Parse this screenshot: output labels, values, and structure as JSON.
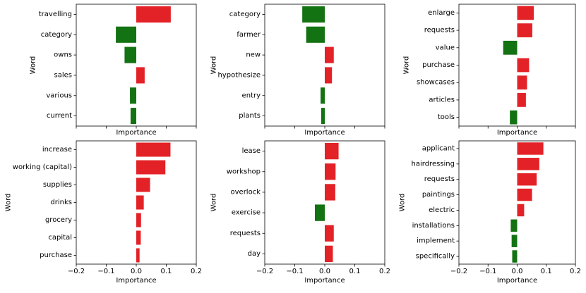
{
  "colors": {
    "positive": "#e32227",
    "negative": "#137212",
    "axis": "#000000"
  },
  "chart_data": [
    {
      "type": "bar",
      "orientation": "horizontal",
      "xlabel": "Importance",
      "ylabel": "Word",
      "xlim": [
        -0.2,
        0.2
      ],
      "xticks": [
        -0.2,
        -0.1,
        0.0,
        0.1,
        0.2
      ],
      "xticklabels": [
        "−0.2",
        "−0.1",
        "0.0",
        "0.1",
        "0.2"
      ],
      "show_xticklabels": false,
      "categories": [
        "travelling",
        "category",
        "owns",
        "sales",
        "various",
        "current"
      ],
      "values": [
        0.115,
        -0.068,
        -0.039,
        0.028,
        -0.021,
        -0.019
      ]
    },
    {
      "type": "bar",
      "orientation": "horizontal",
      "xlabel": "Importance",
      "ylabel": "Word",
      "xlim": [
        -0.2,
        0.2
      ],
      "xticks": [
        -0.2,
        -0.1,
        0.0,
        0.1,
        0.2
      ],
      "xticklabels": [
        "−0.2",
        "−0.1",
        "0.0",
        "0.1",
        "0.2"
      ],
      "show_xticklabels": false,
      "categories": [
        "category",
        "farmer",
        "new",
        "hypothesize",
        "entry",
        "plants"
      ],
      "values": [
        -0.075,
        -0.062,
        0.03,
        0.024,
        -0.014,
        -0.012
      ]
    },
    {
      "type": "bar",
      "orientation": "horizontal",
      "xlabel": "Importance",
      "ylabel": "Word",
      "xlim": [
        -0.2,
        0.2
      ],
      "xticks": [
        -0.2,
        -0.1,
        0.0,
        0.1,
        0.2
      ],
      "xticklabels": [
        "−0.2",
        "−0.1",
        "0.0",
        "0.1",
        "0.2"
      ],
      "show_xticklabels": false,
      "categories": [
        "enlarge",
        "requests",
        "value",
        "purchase",
        "showcases",
        "articles",
        "tools"
      ],
      "values": [
        0.057,
        0.052,
        -0.048,
        0.041,
        0.034,
        0.03,
        -0.025
      ]
    },
    {
      "type": "bar",
      "orientation": "horizontal",
      "xlabel": "Importance",
      "ylabel": "Word",
      "xlim": [
        -0.2,
        0.2
      ],
      "xticks": [
        -0.2,
        -0.1,
        0.0,
        0.1,
        0.2
      ],
      "xticklabels": [
        "−0.2",
        "−0.1",
        "0.0",
        "0.1",
        "0.2"
      ],
      "show_xticklabels": true,
      "categories": [
        "increase",
        "working (capital)",
        "supplies",
        "drinks",
        "grocery",
        "capital",
        "purchase"
      ],
      "values": [
        0.114,
        0.097,
        0.046,
        0.025,
        0.016,
        0.015,
        0.011
      ]
    },
    {
      "type": "bar",
      "orientation": "horizontal",
      "xlabel": "Importance",
      "ylabel": "Word",
      "xlim": [
        -0.2,
        0.2
      ],
      "xticks": [
        -0.2,
        -0.1,
        0.0,
        0.1,
        0.2
      ],
      "xticklabels": [
        "−0.2",
        "−0.1",
        "0.0",
        "0.1",
        "0.2"
      ],
      "show_xticklabels": true,
      "categories": [
        "lease",
        "workshop",
        "overlock",
        "exercise",
        "requests",
        "day"
      ],
      "values": [
        0.046,
        0.036,
        0.035,
        -0.033,
        0.03,
        0.027
      ]
    },
    {
      "type": "bar",
      "orientation": "horizontal",
      "xlabel": "Importance",
      "ylabel": "Word",
      "xlim": [
        -0.2,
        0.2
      ],
      "xticks": [
        -0.2,
        -0.1,
        0.0,
        0.1,
        0.2
      ],
      "xticklabels": [
        "−0.2",
        "−0.1",
        "0.0",
        "0.1",
        "0.2"
      ],
      "show_xticklabels": true,
      "categories": [
        "applicant",
        "hairdressing",
        "requests",
        "paintings",
        "electric",
        "installations",
        "implement",
        "specifically"
      ],
      "values": [
        0.09,
        0.076,
        0.067,
        0.051,
        0.024,
        -0.022,
        -0.019,
        -0.017
      ]
    }
  ]
}
